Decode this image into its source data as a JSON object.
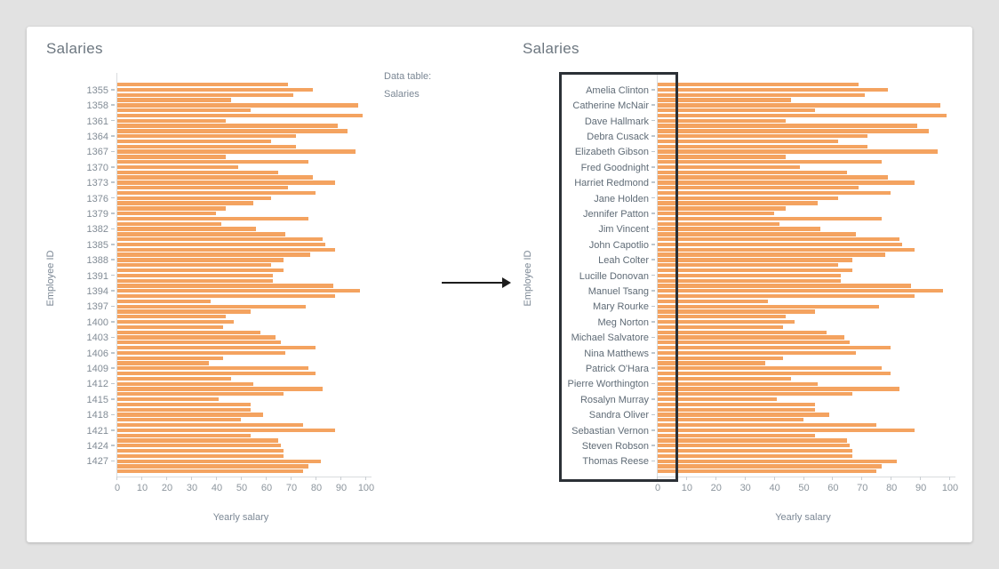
{
  "page": {
    "background": "#e2e2e2",
    "card_background": "#ffffff"
  },
  "middle": {
    "note_line1": "Data table:",
    "note_line2": "Salaries",
    "arrow_icon": "right-arrow"
  },
  "charts": {
    "left": {
      "title": "Salaries",
      "y_axis_label": "Employee ID",
      "x_axis_label": "Yearly salary",
      "tick_label_field": "id"
    },
    "right": {
      "title": "Salaries",
      "y_axis_label": "Employee ID",
      "x_axis_label": "Yearly salary",
      "tick_label_field": "name",
      "highlight_box_on_labels": true
    }
  },
  "chart_data": {
    "type": "bar",
    "orientation": "horizontal",
    "title": "Salaries",
    "xlabel": "Yearly salary",
    "ylabel": "Employee ID",
    "xlim": [
      0,
      100
    ],
    "xticks": [
      0,
      10,
      20,
      30,
      40,
      50,
      60,
      70,
      80,
      90,
      100
    ],
    "grid": false,
    "legend": false,
    "bar_color": "#f4a360",
    "structure_note": "76 bars total: one unlabeled leading bar, then 25 groups of 3 bars; the y-axis tick label sits on the first bar of each group. Left chart labels = employee IDs, right chart labels = employee names.",
    "leading_value": 69,
    "employees": [
      {
        "id": "1355",
        "name": "Amelia Clinton",
        "values": [
          79,
          71,
          46
        ]
      },
      {
        "id": "1358",
        "name": "Catherine McNair",
        "values": [
          97,
          54,
          99
        ]
      },
      {
        "id": "1361",
        "name": "Dave Hallmark",
        "values": [
          44,
          89,
          93
        ]
      },
      {
        "id": "1364",
        "name": "Debra Cusack",
        "values": [
          72,
          62,
          72
        ]
      },
      {
        "id": "1367",
        "name": "Elizabeth Gibson",
        "values": [
          96,
          44,
          77
        ]
      },
      {
        "id": "1370",
        "name": "Fred Goodnight",
        "values": [
          49,
          65,
          79
        ]
      },
      {
        "id": "1373",
        "name": "Harriet Redmond",
        "values": [
          88,
          69,
          80
        ]
      },
      {
        "id": "1376",
        "name": "Jane Holden",
        "values": [
          62,
          55,
          44
        ]
      },
      {
        "id": "1379",
        "name": "Jennifer Patton",
        "values": [
          40,
          77,
          42
        ]
      },
      {
        "id": "1382",
        "name": "Jim Vincent",
        "values": [
          56,
          68,
          83
        ]
      },
      {
        "id": "1385",
        "name": "John Capotlio",
        "values": [
          84,
          88,
          78
        ]
      },
      {
        "id": "1388",
        "name": "Leah Colter",
        "values": [
          67,
          62,
          67
        ]
      },
      {
        "id": "1391",
        "name": "Lucille Donovan",
        "values": [
          63,
          63,
          87
        ]
      },
      {
        "id": "1394",
        "name": "Manuel Tsang",
        "values": [
          98,
          88,
          38
        ]
      },
      {
        "id": "1397",
        "name": "Mary Rourke",
        "values": [
          76,
          54,
          44
        ]
      },
      {
        "id": "1400",
        "name": "Meg Norton",
        "values": [
          47,
          43,
          58
        ]
      },
      {
        "id": "1403",
        "name": "Michael Salvatore",
        "values": [
          64,
          66,
          80
        ]
      },
      {
        "id": "1406",
        "name": "Nina Matthews",
        "values": [
          68,
          43,
          37
        ]
      },
      {
        "id": "1409",
        "name": "Patrick O'Hara",
        "values": [
          77,
          80,
          46
        ]
      },
      {
        "id": "1412",
        "name": "Pierre Worthington",
        "values": [
          55,
          83,
          67
        ]
      },
      {
        "id": "1415",
        "name": "Rosalyn Murray",
        "values": [
          41,
          54,
          54
        ]
      },
      {
        "id": "1418",
        "name": "Sandra Oliver",
        "values": [
          59,
          50,
          75
        ]
      },
      {
        "id": "1421",
        "name": "Sebastian Vernon",
        "values": [
          88,
          54,
          65
        ]
      },
      {
        "id": "1424",
        "name": "Steven Robson",
        "values": [
          66,
          67,
          67
        ]
      },
      {
        "id": "1427",
        "name": "Thomas Reese",
        "values": [
          82,
          77,
          75
        ]
      }
    ]
  }
}
